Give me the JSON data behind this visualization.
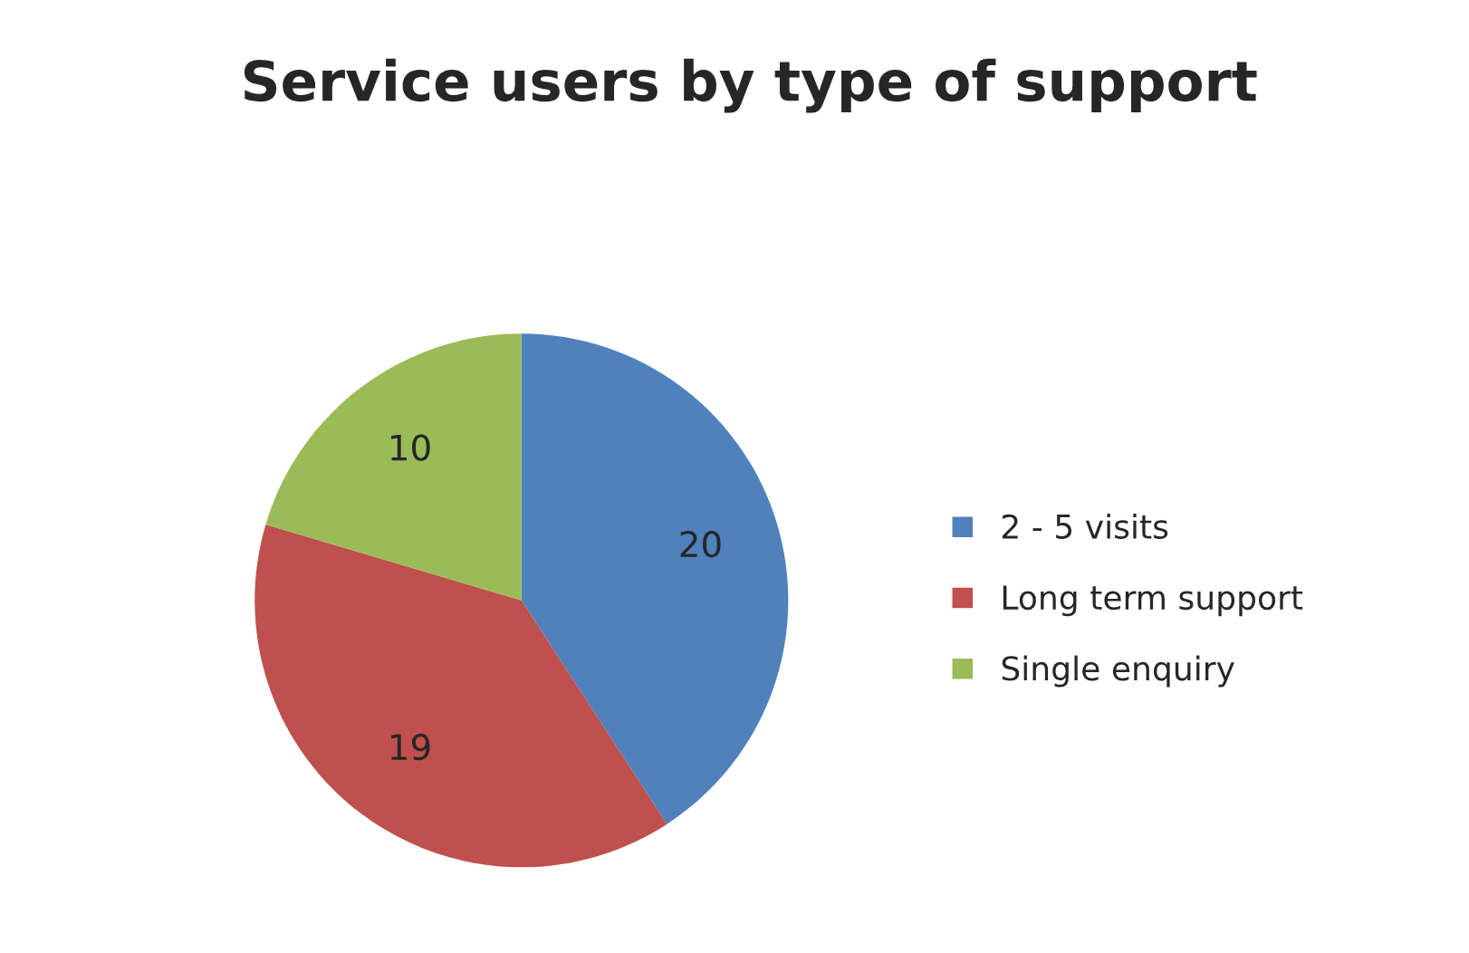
{
  "chart_data": {
    "type": "pie",
    "title": "Service users by type of support",
    "categories": [
      "2 - 5 visits",
      "Long term support",
      "Single enquiry"
    ],
    "values": [
      20,
      19,
      10
    ],
    "colors": [
      "#4f81bd",
      "#c0504d",
      "#9bbb59"
    ],
    "data_labels": true,
    "legend": "right"
  }
}
